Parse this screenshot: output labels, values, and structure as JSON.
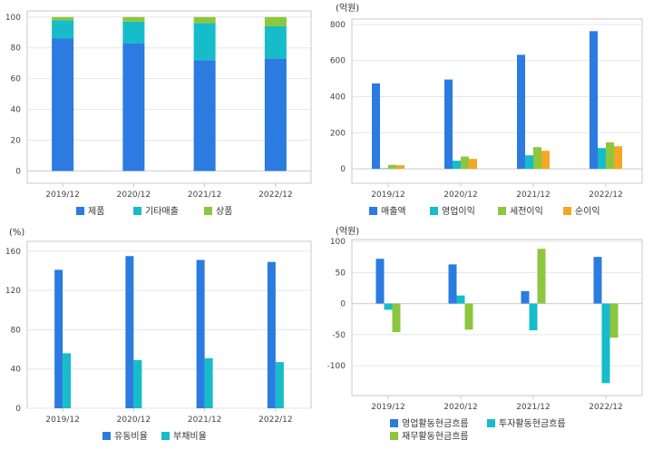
{
  "chart_data": [
    {
      "type": "bar",
      "stacked": true,
      "unit": "",
      "categories": [
        "2019/12",
        "2020/12",
        "2021/12",
        "2022/12"
      ],
      "yticks": [
        0,
        20,
        40,
        60,
        80,
        100
      ],
      "ylim": [
        -8,
        104
      ],
      "grid": true,
      "legend": "bottom",
      "series": [
        {
          "name": "제품",
          "color": "#2b7be0",
          "values": [
            86,
            83,
            72,
            73
          ]
        },
        {
          "name": "기타매출",
          "color": "#16bcc9",
          "values": [
            12,
            14,
            24,
            21
          ]
        },
        {
          "name": "상품",
          "color": "#8dc63f",
          "values": [
            2,
            3,
            4,
            6
          ]
        }
      ]
    },
    {
      "type": "bar",
      "stacked": false,
      "unit": "(억원)",
      "categories": [
        "2019/12",
        "2020/12",
        "2021/12",
        "2022/12"
      ],
      "yticks": [
        0,
        200,
        400,
        600,
        800
      ],
      "ylim": [
        -80,
        830
      ],
      "grid": true,
      "legend": "bottom",
      "series": [
        {
          "name": "매출액",
          "color": "#2b7be0",
          "values": [
            473,
            495,
            632,
            763
          ]
        },
        {
          "name": "영업이익",
          "color": "#16bcc9",
          "values": [
            3,
            45,
            75,
            115
          ]
        },
        {
          "name": "세전이익",
          "color": "#8dc63f",
          "values": [
            22,
            68,
            120,
            147
          ]
        },
        {
          "name": "순이익",
          "color": "#f5a623",
          "values": [
            20,
            55,
            100,
            125
          ]
        }
      ]
    },
    {
      "type": "bar",
      "stacked": false,
      "unit": "(%)",
      "categories": [
        "2019/12",
        "2020/12",
        "2021/12",
        "2022/12"
      ],
      "yticks": [
        0,
        40,
        80,
        120,
        160
      ],
      "ylim": [
        0,
        170
      ],
      "grid": true,
      "legend": "bottom",
      "series": [
        {
          "name": "유동비율",
          "color": "#2b7be0",
          "values": [
            141,
            155,
            151,
            149
          ]
        },
        {
          "name": "부채비율",
          "color": "#16bcc9",
          "values": [
            56,
            49,
            51,
            47
          ]
        }
      ]
    },
    {
      "type": "bar",
      "stacked": false,
      "unit": "(억원)",
      "categories": [
        "2019/12",
        "2020/12",
        "2021/12",
        "2022/12"
      ],
      "yticks": [
        -100,
        -50,
        0,
        50,
        100
      ],
      "ylim": [
        -148,
        103
      ],
      "grid": true,
      "legend": "bottom",
      "series": [
        {
          "name": "영업활동현금흐름",
          "color": "#2b7be0",
          "values": [
            72,
            63,
            20,
            75
          ]
        },
        {
          "name": "투자활동현금흐름",
          "color": "#16bcc9",
          "values": [
            -10,
            13,
            -43,
            -128
          ]
        },
        {
          "name": "재무활동현금흐름",
          "color": "#8dc63f",
          "values": [
            -46,
            -42,
            88,
            -55
          ]
        }
      ]
    }
  ]
}
